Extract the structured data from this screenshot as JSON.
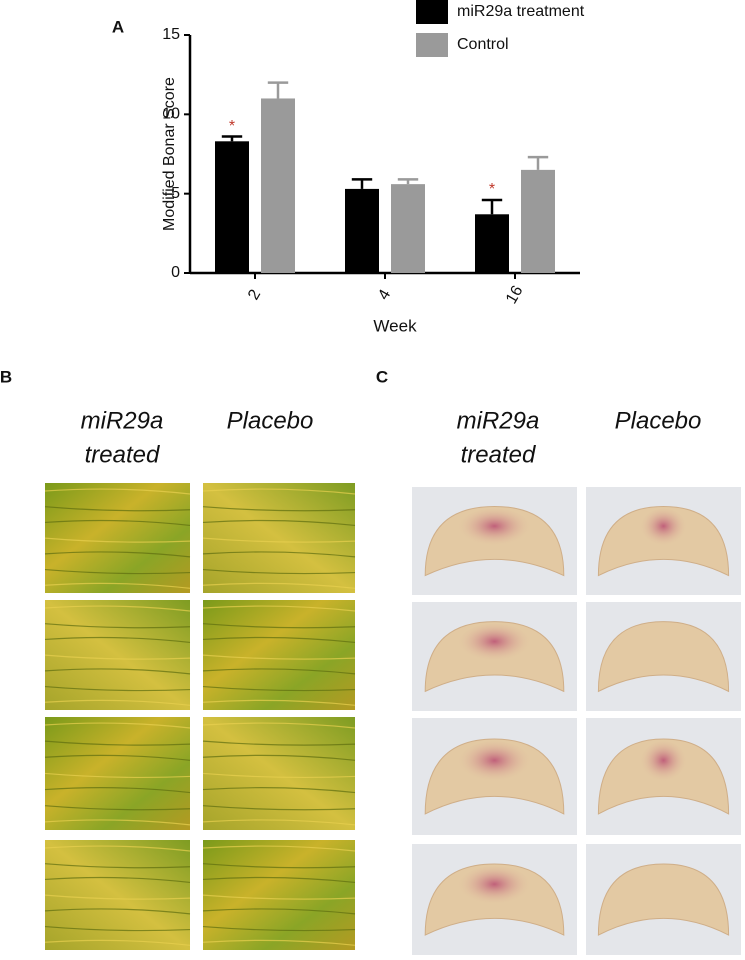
{
  "chart_data": {
    "type": "bar",
    "x_label": "Week",
    "y_label": "Modified Bonar Score",
    "categories": [
      "2",
      "4",
      "16"
    ],
    "series": [
      {
        "name": "miR29a treatment",
        "color": "#000000",
        "values": [
          8.3,
          5.3,
          3.7
        ],
        "errors": [
          0.3,
          0.6,
          0.9
        ],
        "significance": [
          "*",
          null,
          "*"
        ],
        "significance_color": "#c0392b"
      },
      {
        "name": "Control",
        "color": "#9a9a9a",
        "values": [
          11,
          5.6,
          6.5
        ],
        "errors": [
          1.0,
          0.3,
          0.8
        ],
        "significance": [
          null,
          null,
          null
        ],
        "significance_color": "#c0392b"
      }
    ],
    "ylim": [
      0,
      15
    ],
    "yticks": [
      0,
      5,
      10,
      15
    ],
    "legend": "top-right"
  },
  "panel_labels": [
    "A",
    "B",
    "C"
  ],
  "panel_b": {
    "captions": [
      [
        "miR29a",
        "treated"
      ],
      [
        "Placebo"
      ]
    ]
  },
  "panel_c": {
    "captions": [
      [
        "miR29a",
        "treated"
      ],
      [
        "Placebo"
      ]
    ]
  }
}
